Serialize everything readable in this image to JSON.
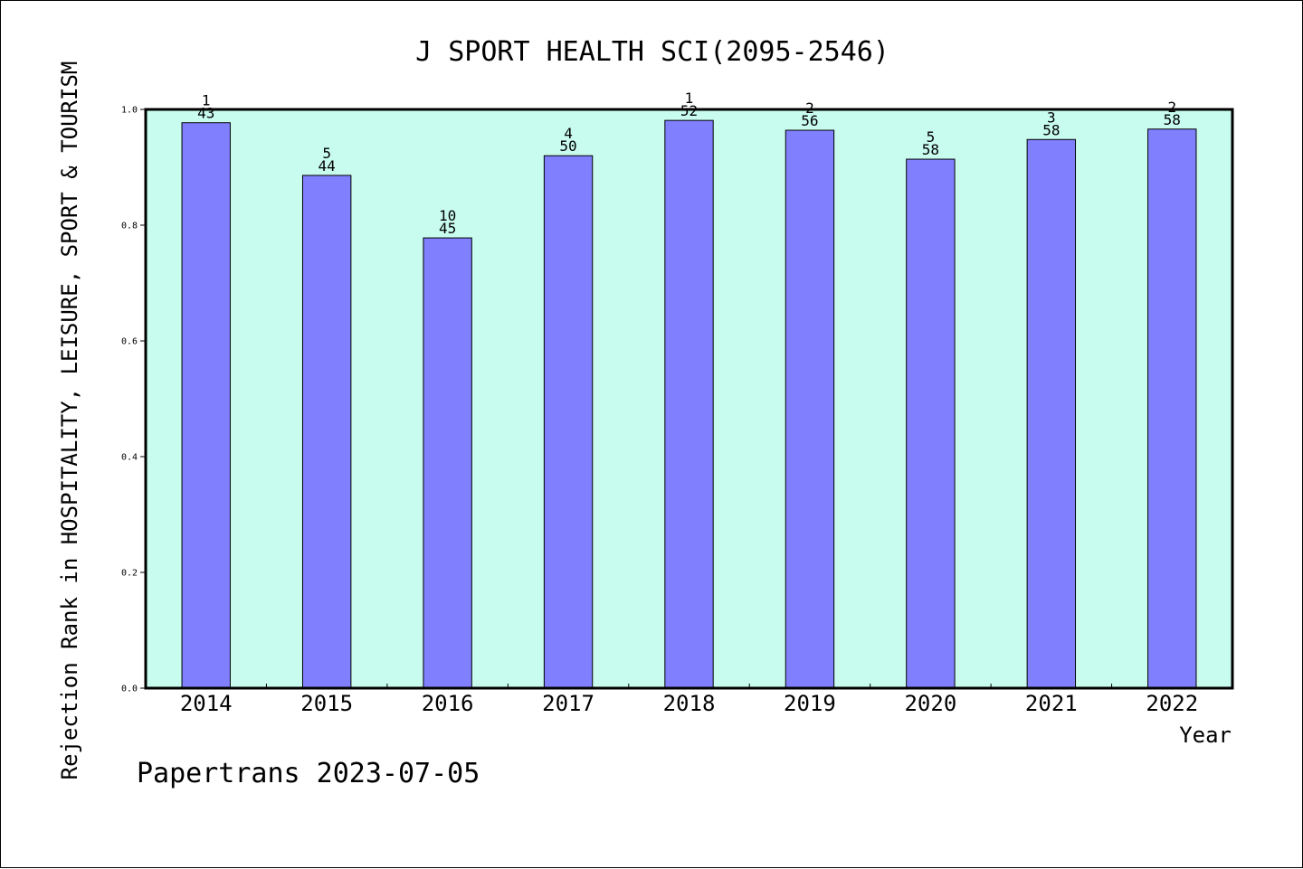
{
  "chart_data": {
    "type": "bar",
    "title": "J SPORT HEALTH SCI(2095-2546)",
    "xlabel": "Year",
    "ylabel": "Rejection Rank in HOSPITALITY, LEISURE, SPORT & TOURISM",
    "footer": "Papertrans 2023-07-05",
    "ylim": [
      0,
      1.0
    ],
    "yticks": [
      "0.0",
      "0.2",
      "0.4",
      "0.6",
      "0.8",
      "1.0"
    ],
    "grid": false,
    "categories": [
      "2014",
      "2015",
      "2016",
      "2017",
      "2018",
      "2019",
      "2020",
      "2021",
      "2022"
    ],
    "values": [
      0.977,
      0.886,
      0.778,
      0.92,
      0.981,
      0.964,
      0.914,
      0.948,
      0.966
    ],
    "ranks": [
      "1",
      "5",
      "10",
      "4",
      "1",
      "2",
      "5",
      "3",
      "2"
    ],
    "totals": [
      "43",
      "44",
      "45",
      "50",
      "52",
      "56",
      "58",
      "58",
      "58"
    ],
    "colors": {
      "plot_background": "#c8fcee",
      "bar_fill": "#8080ff",
      "bar_stroke": "#000000",
      "axis": "#000000",
      "text": "#000000"
    }
  }
}
